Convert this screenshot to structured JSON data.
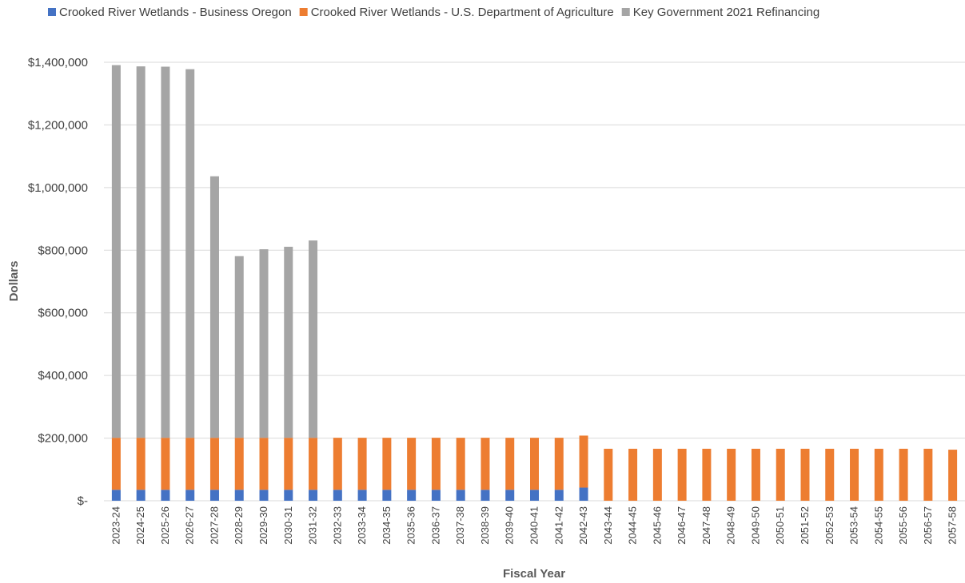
{
  "chart_data": {
    "type": "bar",
    "stacked": true,
    "xlabel": "Fiscal Year",
    "ylabel": "Dollars",
    "ylim": [
      0,
      1400000
    ],
    "yticks": [
      {
        "value": 0,
        "label": "$-"
      },
      {
        "value": 200000,
        "label": "$200,000"
      },
      {
        "value": 400000,
        "label": "$400,000"
      },
      {
        "value": 600000,
        "label": "$600,000"
      },
      {
        "value": 800000,
        "label": "$800,000"
      },
      {
        "value": 1000000,
        "label": "$1,000,000"
      },
      {
        "value": 1200000,
        "label": "$1,200,000"
      },
      {
        "value": 1400000,
        "label": "$1,400,000"
      }
    ],
    "grid": "horizontal",
    "legend_position": "top",
    "categories": [
      "2023-24",
      "2024-25",
      "2025-26",
      "2026-27",
      "2027-28",
      "2028-29",
      "2029-30",
      "2030-31",
      "2031-32",
      "2032-33",
      "2033-34",
      "2034-35",
      "2035-36",
      "2036-37",
      "2037-38",
      "2038-39",
      "2039-40",
      "2040-41",
      "2041-42",
      "2042-43",
      "2043-44",
      "2044-45",
      "2045-46",
      "2046-47",
      "2047-48",
      "2048-49",
      "2049-50",
      "2050-51",
      "2051-52",
      "2052-53",
      "2053-54",
      "2054-55",
      "2055-56",
      "2056-57",
      "2057-58"
    ],
    "series": [
      {
        "name": "Crooked River Wetlands - Business Oregon",
        "color": "#4472c4",
        "values": [
          35000,
          35000,
          35000,
          35000,
          35000,
          35000,
          35000,
          35000,
          35000,
          35000,
          35000,
          35000,
          35000,
          35000,
          35000,
          35000,
          35000,
          35000,
          35000,
          42000,
          0,
          0,
          0,
          0,
          0,
          0,
          0,
          0,
          0,
          0,
          0,
          0,
          0,
          0,
          0
        ]
      },
      {
        "name": "Crooked River Wetlands - U.S. Department of Agriculture",
        "color": "#ed7d31",
        "values": [
          166000,
          166000,
          166000,
          166000,
          166000,
          166000,
          166000,
          166000,
          166000,
          166000,
          166000,
          166000,
          166000,
          166000,
          166000,
          166000,
          166000,
          166000,
          166000,
          166000,
          166000,
          166000,
          166000,
          166000,
          166000,
          166000,
          166000,
          166000,
          166000,
          166000,
          166000,
          166000,
          166000,
          166000,
          163000
        ]
      },
      {
        "name": "Key Government 2021 Refinancing",
        "color": "#a5a5a5",
        "values": [
          1190000,
          1186000,
          1185000,
          1177000,
          835000,
          580000,
          602000,
          610000,
          630000,
          0,
          0,
          0,
          0,
          0,
          0,
          0,
          0,
          0,
          0,
          0,
          0,
          0,
          0,
          0,
          0,
          0,
          0,
          0,
          0,
          0,
          0,
          0,
          0,
          0,
          0
        ]
      }
    ]
  }
}
